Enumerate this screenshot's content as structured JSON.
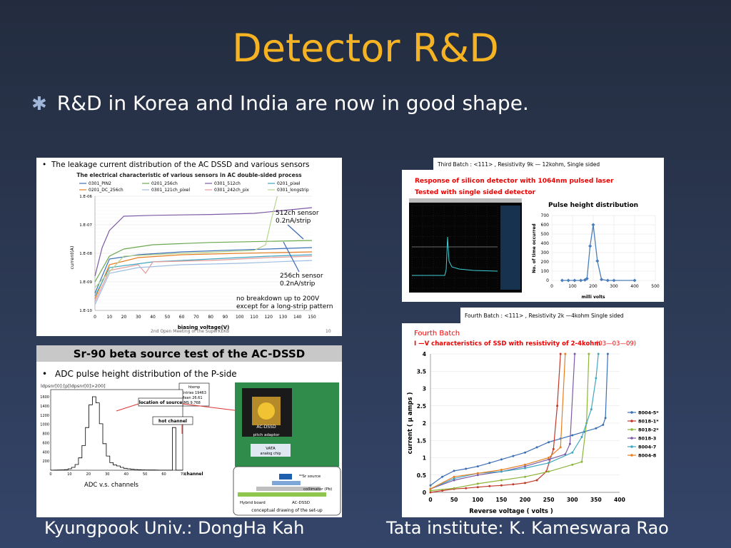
{
  "slide": {
    "title": "Detector R&D",
    "bullet": "R&D in Korea and India are now in good shape.",
    "credit_left": "Kyungpook Univ.: DongHa Kah",
    "credit_right": "Tata institute: K. Kameswara Rao"
  },
  "panel_leakage": {
    "header": "The leakage current distribution of the AC DSSD and various sensors",
    "subtitle": "The electrical characteristic of various sensors in AC double-sided process",
    "legend": [
      "0301_PIN2",
      "0201_256ch",
      "0301_512ch",
      "0201_pixel",
      "0201_DC_256ch",
      "0301_121ch_pixel",
      "0301_242ch_pix",
      "0301_longstrip"
    ],
    "ylabel": "current(A)",
    "xlabel": "biasing voltage(V)",
    "yticks": [
      "1.E-06",
      "1.E-07",
      "1.E-08",
      "1.E-09",
      "1.E-10"
    ],
    "xticks": [
      "0",
      "10",
      "20",
      "30",
      "40",
      "50",
      "60",
      "70",
      "80",
      "90",
      "100",
      "110",
      "120",
      "130",
      "140",
      "150"
    ],
    "ann_512_line1": "512ch sensor",
    "ann_512_line2": "0.2nA/strip",
    "ann_256_line1": "256ch sensor",
    "ann_256_line2": "0.2nA/strip",
    "ann_nb_line1": "no breakdown up to 200V",
    "ann_nb_line2": "except for a long-strip pattern",
    "footer": "2nd  Open Meeting of the SuperKEKB",
    "page": "10"
  },
  "panel_sr90": {
    "title": "Sr-90 beta source test of the AC-DSSD",
    "bullet": "ADC pulse height distribution of the P-side",
    "hist_title": "ldpsnr[0]:[p[ldpsnr[0]>200]",
    "stats_name": "htemp",
    "stats_entries": "Entries  19463",
    "stats_mean": "Mean    26.61",
    "stats_rms": "RMS     9.768",
    "yticks": [
      "1600",
      "1400",
      "1200",
      "1000",
      "800",
      "600",
      "400",
      "200"
    ],
    "xticks": [
      "0",
      "10",
      "20",
      "30",
      "40",
      "50",
      "60",
      "70"
    ],
    "label_location": "location of source",
    "label_hot": "hot channel",
    "xaxis_label": "channel",
    "caption": "ADC v.s. channels",
    "photo_acdssd": "AC-DSSD",
    "photo_pitch": "pitch adaptor",
    "photo_vata": "VATA",
    "photo_analog": "analog chip",
    "diag_source": "⁹⁰Sr source",
    "diag_collimator": "collimator (Pb)",
    "diag_hybrid": "Hybrid board",
    "diag_acdssd": "AC-DSSD",
    "diag_caption": "conceptual drawing of the set-up"
  },
  "panel_third": {
    "batch": "Third  Batch    :  <111> ,  Resistivity  9k  —  12kohm, Single  sided",
    "red_line1": "Response of silicon detector with 1064nm pulsed laser",
    "red_line2": "Tested with single sided detector",
    "chart_title": "Pulse height distribution",
    "ylabel": "No. of time occurred",
    "xlabel": "milli volts",
    "yticks": [
      "700",
      "600",
      "500",
      "400",
      "300",
      "200",
      "100",
      "0"
    ],
    "xticks": [
      "0",
      "100",
      "200",
      "300",
      "400",
      "500"
    ]
  },
  "panel_fourth": {
    "batch": "Fourth  Batch    :  <111> ,  Resistivity  2k  —4kohm  Single  sided",
    "red_line1": "Fourth Batch",
    "red_line2": "I —V characteristics of SSD  with resistivity of 2-4kohm",
    "red_date": "(03—03—09)",
    "ylabel": "current ( μ amps )",
    "xlabel": "Reverse voltage ( volts )",
    "yticks": [
      "4",
      "3.5",
      "3",
      "2.5",
      "2",
      "1.5",
      "1",
      "0.5",
      "0"
    ],
    "xticks": [
      "0",
      "50",
      "100",
      "150",
      "200",
      "250",
      "300",
      "350",
      "400"
    ]
  },
  "chart_data": [
    {
      "type": "scatter",
      "title": "Pulse height distribution",
      "xlabel": "milli volts",
      "ylabel": "No. of time occurred",
      "xlim": [
        0,
        500
      ],
      "ylim": [
        0,
        700
      ],
      "series": [
        {
          "x": [
            50,
            80,
            110,
            140,
            160,
            170,
            185,
            200,
            220,
            240,
            270,
            300,
            400
          ],
          "y": [
            0,
            0,
            0,
            0,
            5,
            20,
            370,
            600,
            210,
            10,
            0,
            0,
            0
          ]
        }
      ]
    },
    {
      "type": "line",
      "title": "I —V characteristics of SSD  with resistivity of 2-4kohm",
      "xlabel": "Reverse voltage ( volts )",
      "ylabel": "current ( μ amps )",
      "xlim": [
        0,
        400
      ],
      "ylim": [
        0,
        4
      ],
      "legend_position": "right",
      "series": [
        {
          "name": "8004-5*",
          "color": "#3b6fb6",
          "x": [
            0,
            25,
            50,
            75,
            100,
            125,
            150,
            175,
            200,
            225,
            250,
            275,
            300,
            325,
            350,
            365,
            370,
            375
          ],
          "y": [
            0.2,
            0.45,
            0.62,
            0.68,
            0.75,
            0.85,
            0.95,
            1.05,
            1.15,
            1.3,
            1.45,
            1.55,
            1.65,
            1.75,
            1.85,
            1.95,
            2.15,
            4.0
          ]
        },
        {
          "name": "8018-1*",
          "color": "#c0392b",
          "x": [
            0,
            25,
            50,
            75,
            100,
            125,
            150,
            175,
            200,
            225,
            245,
            260,
            268,
            275
          ],
          "y": [
            0.0,
            0.05,
            0.1,
            0.12,
            0.15,
            0.18,
            0.2,
            0.23,
            0.27,
            0.35,
            0.6,
            1.25,
            2.5,
            4.0
          ]
        },
        {
          "name": "8018-2*",
          "color": "#8db53a",
          "x": [
            0,
            50,
            100,
            150,
            200,
            250,
            300,
            320,
            330,
            335
          ],
          "y": [
            0.05,
            0.12,
            0.25,
            0.35,
            0.45,
            0.6,
            0.8,
            0.88,
            2.0,
            4.0
          ]
        },
        {
          "name": "8018-3",
          "color": "#7d5ba6",
          "x": [
            0,
            50,
            100,
            150,
            200,
            250,
            285,
            295,
            305
          ],
          "y": [
            0.1,
            0.35,
            0.5,
            0.6,
            0.75,
            0.95,
            1.1,
            1.4,
            4.0
          ]
        },
        {
          "name": "8004-7",
          "color": "#3fa7c2",
          "x": [
            0,
            50,
            100,
            150,
            200,
            250,
            300,
            320,
            340,
            350,
            355
          ],
          "y": [
            0.1,
            0.4,
            0.55,
            0.6,
            0.7,
            0.85,
            1.15,
            1.6,
            2.4,
            3.3,
            4.0
          ]
        },
        {
          "name": "8004-8",
          "color": "#e67e22",
          "x": [
            0,
            50,
            100,
            150,
            200,
            250,
            275,
            285
          ],
          "y": [
            0.1,
            0.45,
            0.55,
            0.65,
            0.8,
            1.0,
            1.3,
            4.0
          ]
        }
      ]
    }
  ]
}
